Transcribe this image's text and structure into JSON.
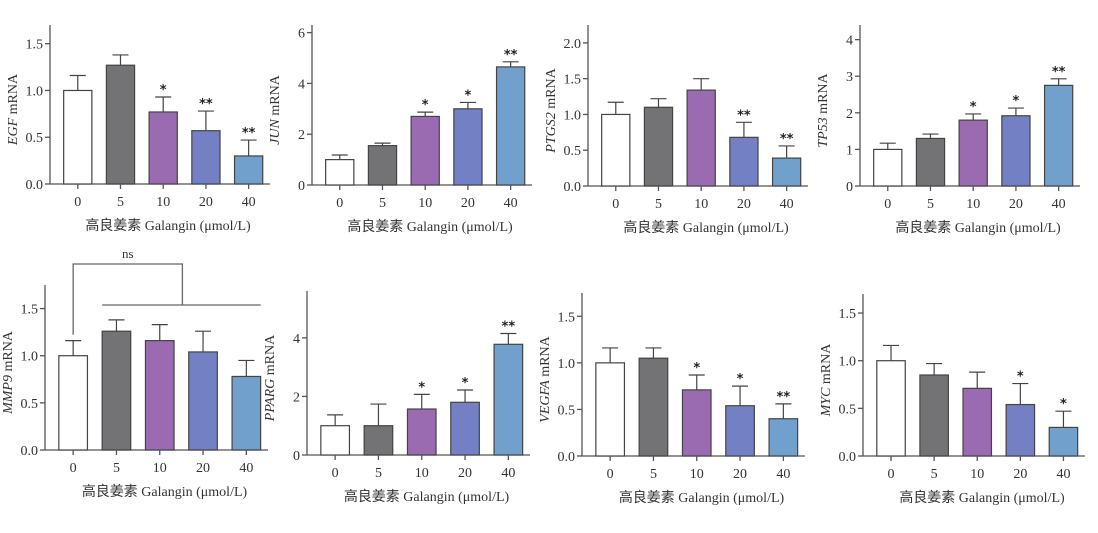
{
  "colors": [
    "#ffffff",
    "#737375",
    "#9b6bb2",
    "#7480c4",
    "#72a0cc"
  ],
  "chart_data": [
    {
      "type": "bar",
      "gene": "EGF",
      "ylabel_suffix": " mRNA",
      "xlabel": "高良姜素  Galangin (μmol/L)",
      "categories": [
        "0",
        "5",
        "10",
        "20",
        "40"
      ],
      "values": [
        1.0,
        1.27,
        0.77,
        0.57,
        0.3
      ],
      "errors": [
        0.16,
        0.11,
        0.16,
        0.21,
        0.17
      ],
      "significance": [
        "",
        "",
        "*",
        "**",
        "**"
      ],
      "ylim": [
        0,
        1.7
      ],
      "yticks": [
        "0.0",
        "0.5",
        "1.0",
        "1.5"
      ],
      "ytick_values": [
        0,
        0.5,
        1.0,
        1.5
      ]
    },
    {
      "type": "bar",
      "gene": "JUN",
      "ylabel_suffix": " mRNA",
      "xlabel": "高良姜素  Galangin (μmol/L)",
      "categories": [
        "0",
        "5",
        "10",
        "20",
        "40"
      ],
      "values": [
        1.0,
        1.55,
        2.7,
        3.0,
        4.65
      ],
      "errors": [
        0.18,
        0.1,
        0.17,
        0.25,
        0.2
      ],
      "significance": [
        "",
        "",
        "*",
        "*",
        "**"
      ],
      "ylim": [
        0,
        6.3
      ],
      "yticks": [
        "0",
        "2",
        "4",
        "6"
      ],
      "ytick_values": [
        0,
        2,
        4,
        6
      ]
    },
    {
      "type": "bar",
      "gene": "PTGS2",
      "ylabel_suffix": " mRNA",
      "xlabel": "高良姜素  Galangin (μmol/L)",
      "categories": [
        "0",
        "5",
        "10",
        "20",
        "40"
      ],
      "values": [
        1.0,
        1.1,
        1.34,
        0.68,
        0.39
      ],
      "errors": [
        0.17,
        0.12,
        0.16,
        0.21,
        0.17
      ],
      "significance": [
        "",
        "",
        "",
        "**",
        "**"
      ],
      "ylim": [
        0,
        2.25
      ],
      "yticks": [
        "0.0",
        "0.5",
        "1.0",
        "1.5",
        "2.0"
      ],
      "ytick_values": [
        0,
        0.5,
        1.0,
        1.5,
        2.0
      ]
    },
    {
      "type": "bar",
      "gene": "TP53",
      "ylabel_suffix": " mRNA",
      "xlabel": "高良姜素  Galangin (μmol/L)",
      "categories": [
        "0",
        "5",
        "10",
        "20",
        "40"
      ],
      "values": [
        1.0,
        1.3,
        1.8,
        1.92,
        2.75
      ],
      "errors": [
        0.17,
        0.12,
        0.17,
        0.21,
        0.18
      ],
      "significance": [
        "",
        "",
        "*",
        "*",
        "**"
      ],
      "ylim": [
        0,
        4.4
      ],
      "yticks": [
        "0",
        "1",
        "2",
        "3",
        "4"
      ],
      "ytick_values": [
        0,
        1,
        2,
        3,
        4
      ]
    },
    {
      "type": "bar",
      "gene": "MMP9",
      "ylabel_suffix": " mRNA",
      "xlabel": "高良姜素  Galangin (μmol/L)",
      "categories": [
        "0",
        "5",
        "10",
        "20",
        "40"
      ],
      "values": [
        1.0,
        1.26,
        1.16,
        1.04,
        0.78
      ],
      "errors": [
        0.16,
        0.12,
        0.17,
        0.22,
        0.17
      ],
      "significance": [
        "",
        "",
        "",
        "",
        ""
      ],
      "annotation": "ns",
      "ylim": [
        0,
        1.75
      ],
      "yticks": [
        "0.0",
        "0.5",
        "1.0",
        "1.5"
      ],
      "ytick_values": [
        0,
        0.5,
        1.0,
        1.5
      ]
    },
    {
      "type": "bar",
      "gene": "PPARG",
      "ylabel_suffix": " mRNA",
      "xlabel": "高良姜素  Galangin (μmol/L)",
      "categories": [
        "0",
        "5",
        "10",
        "20",
        "40"
      ],
      "values": [
        1.0,
        1.0,
        1.57,
        1.8,
        3.78
      ],
      "errors": [
        0.37,
        0.74,
        0.5,
        0.42,
        0.37
      ],
      "significance": [
        "",
        "",
        "*",
        "*",
        "**"
      ],
      "ylim": [
        0,
        5.6
      ],
      "yticks": [
        "0",
        "2",
        "4"
      ],
      "ytick_values": [
        0,
        2,
        4
      ]
    },
    {
      "type": "bar",
      "gene": "VEGFA",
      "ylabel_suffix": " mRNA",
      "xlabel": "高良姜素  Galangin (μmol/L)",
      "categories": [
        "0",
        "5",
        "10",
        "20",
        "40"
      ],
      "values": [
        1.0,
        1.05,
        0.71,
        0.54,
        0.4
      ],
      "errors": [
        0.16,
        0.11,
        0.16,
        0.21,
        0.16
      ],
      "significance": [
        "",
        "",
        "*",
        "*",
        "**"
      ],
      "ylim": [
        0,
        1.75
      ],
      "yticks": [
        "0.0",
        "0.5",
        "1.0",
        "1.5"
      ],
      "ytick_values": [
        0,
        0.5,
        1.0,
        1.5
      ]
    },
    {
      "type": "bar",
      "gene": "MYC",
      "ylabel_suffix": " mRNA",
      "xlabel": "高良姜素  Galangin (μmol/L)",
      "categories": [
        "0",
        "5",
        "10",
        "20",
        "40"
      ],
      "values": [
        1.0,
        0.85,
        0.71,
        0.54,
        0.3
      ],
      "errors": [
        0.16,
        0.12,
        0.17,
        0.22,
        0.17
      ],
      "significance": [
        "",
        "",
        "",
        "*",
        "*"
      ],
      "ylim": [
        0,
        1.7
      ],
      "yticks": [
        "0.0",
        "0.5",
        "1.0",
        "1.5"
      ],
      "ytick_values": [
        0,
        0.5,
        1.0,
        1.5
      ]
    }
  ]
}
